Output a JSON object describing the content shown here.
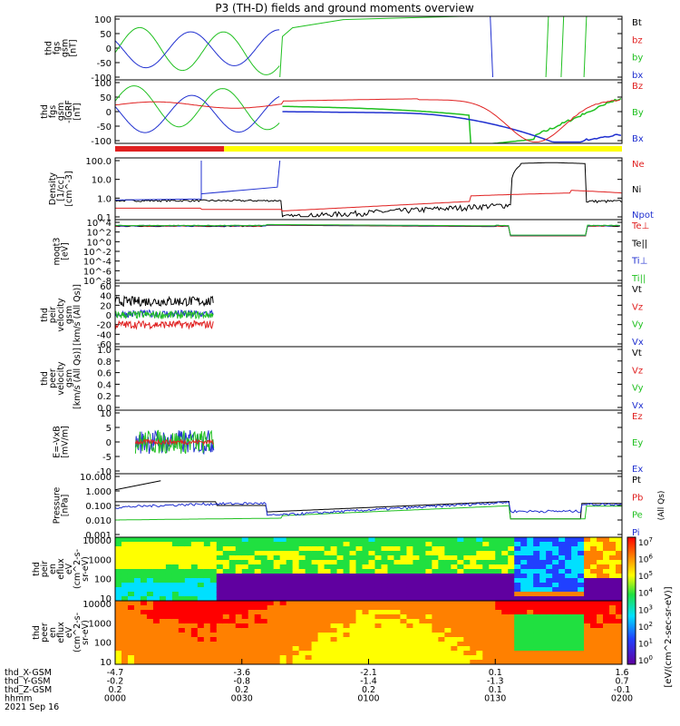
{
  "chart_data": {
    "type": "line",
    "title": "P3 (TH-D) fields and ground moments overview",
    "panels": [
      {
        "id": "fgs_gsm",
        "ylabel": [
          "thd",
          "fgs",
          "gsm",
          "[nT]"
        ],
        "yticks": [
          "100",
          "50",
          "0",
          "-50",
          "-100"
        ],
        "ylim": [
          -100,
          110
        ],
        "legend": [
          {
            "name": "Bt",
            "color": "#000000"
          },
          {
            "name": "bz",
            "color": "#e02020"
          },
          {
            "name": "by",
            "color": "#20c020"
          },
          {
            "name": "bx",
            "color": "#2030d0"
          }
        ]
      },
      {
        "id": "fgs_gsm_igrf",
        "ylabel": [
          "thd",
          "fgs",
          "gsm",
          "-IGRF",
          "[nT]"
        ],
        "yticks": [
          "100",
          "50",
          "0",
          "-50",
          "-100"
        ],
        "ylim": [
          -120,
          110
        ],
        "legend": [
          {
            "name": "Bz",
            "color": "#e02020"
          },
          {
            "name": "By",
            "color": "#20c020"
          },
          {
            "name": "Bx",
            "color": "#2030d0"
          }
        ]
      },
      {
        "id": "density",
        "ylabel": [
          "Density",
          "[1/cc]",
          "[cm^-3]"
        ],
        "yticks": [
          "100.0",
          "10.0",
          "1.0",
          "0.1"
        ],
        "ylim_log": [
          0.05,
          200
        ],
        "legend": [
          {
            "name": "Ne",
            "color": "#e02020"
          },
          {
            "name": "Ni",
            "color": "#000000"
          },
          {
            "name": "Npot",
            "color": "#2030d0"
          }
        ]
      },
      {
        "id": "temperature",
        "ylabel": [
          "moqt3",
          "[eV]"
        ],
        "yticks": [
          "10^4",
          "10^2",
          "10^0",
          "10^-2",
          "10^-4",
          "10^-6",
          "10^-8"
        ],
        "legend": [
          {
            "name": "Te⊥",
            "color": "#e02020"
          },
          {
            "name": "Te||",
            "color": "#000000"
          },
          {
            "name": "Ti⊥",
            "color": "#2030d0"
          },
          {
            "name": "Ti||",
            "color": "#20c020"
          }
        ]
      },
      {
        "id": "peir_velocity",
        "ylabel": [
          "thd",
          "peir",
          "velocity",
          "gsm",
          "[km/s (All Qs)]"
        ],
        "yticks": [
          "60",
          "40",
          "20",
          "0",
          "-20",
          "-40",
          "-60"
        ],
        "ylim": [
          -60,
          60
        ],
        "legend": [
          {
            "name": "Vt",
            "color": "#000000"
          },
          {
            "name": "Vz",
            "color": "#e02020"
          },
          {
            "name": "Vy",
            "color": "#20c020"
          },
          {
            "name": "Vx",
            "color": "#2030d0"
          }
        ]
      },
      {
        "id": "peer_velocity",
        "ylabel": [
          "thd",
          "peer",
          "velocity",
          "gsm",
          "[km/s (All Qs)]"
        ],
        "yticks": [
          "1.0",
          "0.8",
          "0.6",
          "0.4",
          "0.2",
          "0.0"
        ],
        "ylim": [
          0,
          1
        ],
        "legend": [
          {
            "name": "Vt",
            "color": "#000000"
          },
          {
            "name": "Vz",
            "color": "#e02020"
          },
          {
            "name": "Vy",
            "color": "#20c020"
          },
          {
            "name": "Vx",
            "color": "#2030d0"
          }
        ]
      },
      {
        "id": "efield",
        "ylabel": [
          "E=-VxB",
          "[mV/m]"
        ],
        "yticks": [
          "10",
          "5",
          "0",
          "-5",
          "-10"
        ],
        "ylim": [
          -12,
          12
        ],
        "legend": [
          {
            "name": "Ez",
            "color": "#e02020"
          },
          {
            "name": "Ey",
            "color": "#20c020"
          },
          {
            "name": "Ex",
            "color": "#2030d0"
          }
        ]
      },
      {
        "id": "pressure",
        "ylabel": [
          "Pressure",
          "[nPa]"
        ],
        "yticks": [
          "10.000",
          "1.000",
          "0.100",
          "0.010",
          "0.001"
        ],
        "legend": [
          {
            "name": "Pt",
            "color": "#000000"
          },
          {
            "name": "Pb",
            "color": "#e02020"
          },
          {
            "name": "Pe",
            "color": "#20c020"
          },
          {
            "name": "Pi",
            "color": "#2030d0"
          }
        ],
        "right_label": "(All Qs)"
      },
      {
        "id": "peir_eflux",
        "ylabel": [
          "thd",
          "peir",
          "en",
          "eflux",
          "eV",
          "(cm^2-s-",
          "sr-eV)"
        ],
        "yticks": [
          "10000",
          "1000",
          "100",
          "10"
        ]
      },
      {
        "id": "peer_eflux",
        "ylabel": [
          "thd",
          "peer",
          "en",
          "eflux",
          "eV",
          "(cm^2-s-",
          "sr-eV)"
        ],
        "yticks": [
          "10000",
          "1000",
          "100",
          "10"
        ]
      }
    ],
    "colorbar": {
      "ticks": [
        "10^7",
        "10^6",
        "10^5",
        "10^4",
        "10^3",
        "10^2",
        "10^1",
        "10^0"
      ],
      "label": "[eV/(cm^2-sec-sr-eV)]"
    },
    "ephemeris": {
      "rows": [
        {
          "label": "thd_X-GSM",
          "values": [
            "-4.7",
            "-3.6",
            "-2.1",
            "0.1",
            "1.6"
          ]
        },
        {
          "label": "thd_Y-GSM",
          "values": [
            "-0.2",
            "-0.8",
            "-1.4",
            "-1.3",
            "0.7"
          ]
        },
        {
          "label": "thd_Z-GSM",
          "values": [
            "0.2",
            "0.2",
            "0.2",
            "0.1",
            "-0.1"
          ]
        },
        {
          "label": "hhmm",
          "values": [
            "0000",
            "0030",
            "0100",
            "0130",
            "0200"
          ]
        }
      ],
      "date": "2021 Sep 16"
    },
    "x": [
      "0000",
      "0030",
      "0100",
      "0130",
      "0200"
    ],
    "xlabel": "hhmm"
  }
}
